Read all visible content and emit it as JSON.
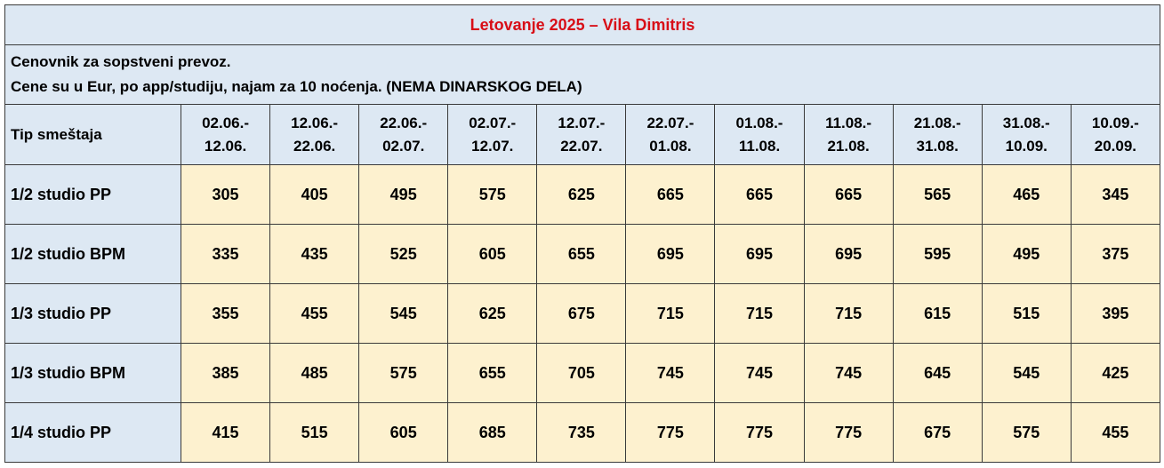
{
  "title": "Letovanje 2025 – Vila Dimitris",
  "notes": [
    "Cenovnik za sopstveni prevoz.",
    "Cene su u Eur, po app/studiju, najam za 10 noćenja. (NEMA DINARSKOG DELA)"
  ],
  "type_header": "Tip smeštaja",
  "periods": [
    {
      "from": "02.06.-",
      "to": "12.06."
    },
    {
      "from": "12.06.-",
      "to": "22.06."
    },
    {
      "from": "22.06.-",
      "to": "02.07."
    },
    {
      "from": "02.07.-",
      "to": "12.07."
    },
    {
      "from": "12.07.-",
      "to": "22.07."
    },
    {
      "from": "22.07.-",
      "to": "01.08."
    },
    {
      "from": "01.08.-",
      "to": "11.08."
    },
    {
      "from": "11.08.-",
      "to": "21.08."
    },
    {
      "from": "21.08.-",
      "to": "31.08."
    },
    {
      "from": "31.08.-",
      "to": "10.09."
    },
    {
      "from": "10.09.-",
      "to": "20.09."
    }
  ],
  "rows": [
    {
      "type": "1/2 studio PP",
      "prices": [
        "305",
        "405",
        "495",
        "575",
        "625",
        "665",
        "665",
        "665",
        "565",
        "465",
        "345"
      ]
    },
    {
      "type": "1/2 studio BPM",
      "prices": [
        "335",
        "435",
        "525",
        "605",
        "655",
        "695",
        "695",
        "695",
        "595",
        "495",
        "375"
      ]
    },
    {
      "type": "1/3 studio PP",
      "prices": [
        "355",
        "455",
        "545",
        "625",
        "675",
        "715",
        "715",
        "715",
        "615",
        "515",
        "395"
      ]
    },
    {
      "type": "1/3 studio BPM",
      "prices": [
        "385",
        "485",
        "575",
        "655",
        "705",
        "745",
        "745",
        "745",
        "645",
        "545",
        "425"
      ]
    },
    {
      "type": "1/4  studio PP",
      "prices": [
        "415",
        "515",
        "605",
        "685",
        "735",
        "775",
        "775",
        "775",
        "675",
        "575",
        "455"
      ]
    }
  ],
  "colors": {
    "title": "#d80e17",
    "header_bg": "#dde8f3",
    "price_bg": "#fdf1cf",
    "border": "#3a3a3a"
  }
}
